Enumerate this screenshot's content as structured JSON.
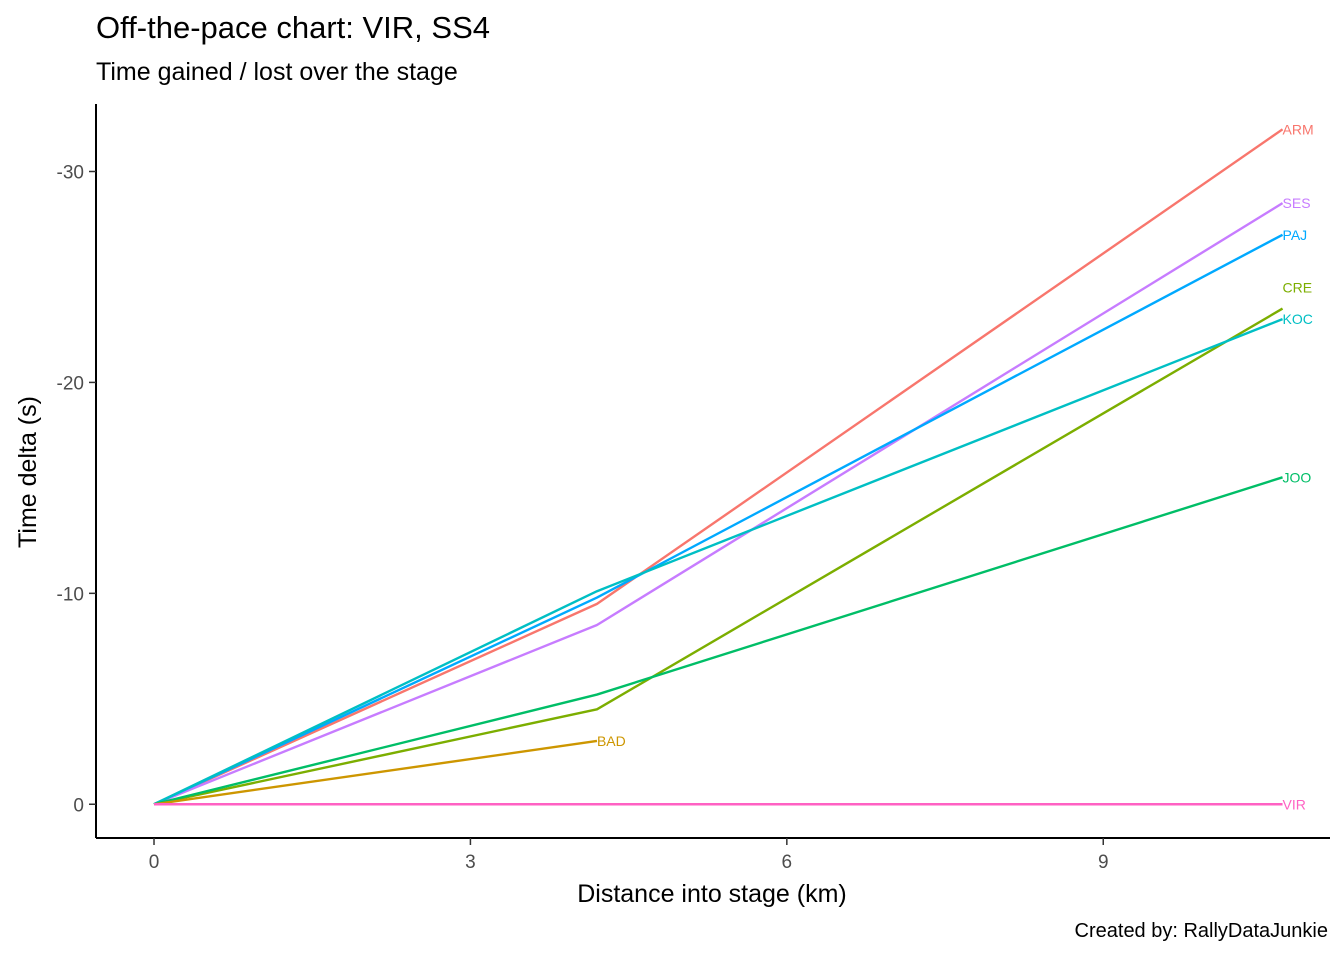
{
  "chart_data": {
    "type": "line",
    "title": "Off-the-pace chart: VIR, SS4",
    "subtitle": "Time gained / lost over the stage",
    "caption": "Created by: RallyDataJunkie",
    "xlabel": "Distance into stage (km)",
    "ylabel": "Time delta (s)",
    "xlim": [
      -0.55,
      11.15
    ],
    "ylim": [
      1.6,
      -33.2
    ],
    "y_reversed": true,
    "x_ticks": [
      0,
      3,
      6,
      9
    ],
    "x_tick_labels": [
      "0",
      "3",
      "6",
      "9"
    ],
    "y_ticks": [
      -30,
      -20,
      -10,
      0
    ],
    "y_tick_labels": [
      "-30",
      "-20",
      "-10",
      "0"
    ],
    "grid": false,
    "legend": "none",
    "series": [
      {
        "name": "ARM",
        "color": "#F8766D",
        "x": [
          0,
          4.2,
          10.7
        ],
        "y": [
          0,
          -9.5,
          -32.0
        ]
      },
      {
        "name": "SES",
        "color": "#C77CFF",
        "x": [
          0,
          4.2,
          10.7
        ],
        "y": [
          0,
          -8.5,
          -28.5
        ]
      },
      {
        "name": "PAJ",
        "color": "#00A9FF",
        "x": [
          0,
          4.2,
          10.7
        ],
        "y": [
          0,
          -9.8,
          -27.0
        ]
      },
      {
        "name": "CRE",
        "color": "#7CAE00",
        "x": [
          0,
          4.2,
          10.7
        ],
        "y": [
          0,
          -4.5,
          -23.5
        ]
      },
      {
        "name": "KOC",
        "color": "#00BFC4",
        "x": [
          0,
          4.2,
          10.7
        ],
        "y": [
          0,
          -10.1,
          -23.0
        ]
      },
      {
        "name": "JOO",
        "color": "#00BE67",
        "x": [
          0,
          4.2,
          10.7
        ],
        "y": [
          0,
          -5.2,
          -15.5
        ]
      },
      {
        "name": "BAD",
        "color": "#CD9600",
        "x": [
          0,
          4.2
        ],
        "y": [
          0,
          -3.0
        ]
      },
      {
        "name": "VIR",
        "color": "#FF61C3",
        "x": [
          0,
          4.2,
          10.7
        ],
        "y": [
          0,
          0,
          0
        ]
      }
    ],
    "end_label_offsets_y": {
      "CRE": -1.0,
      "KOC": 0.0
    }
  }
}
